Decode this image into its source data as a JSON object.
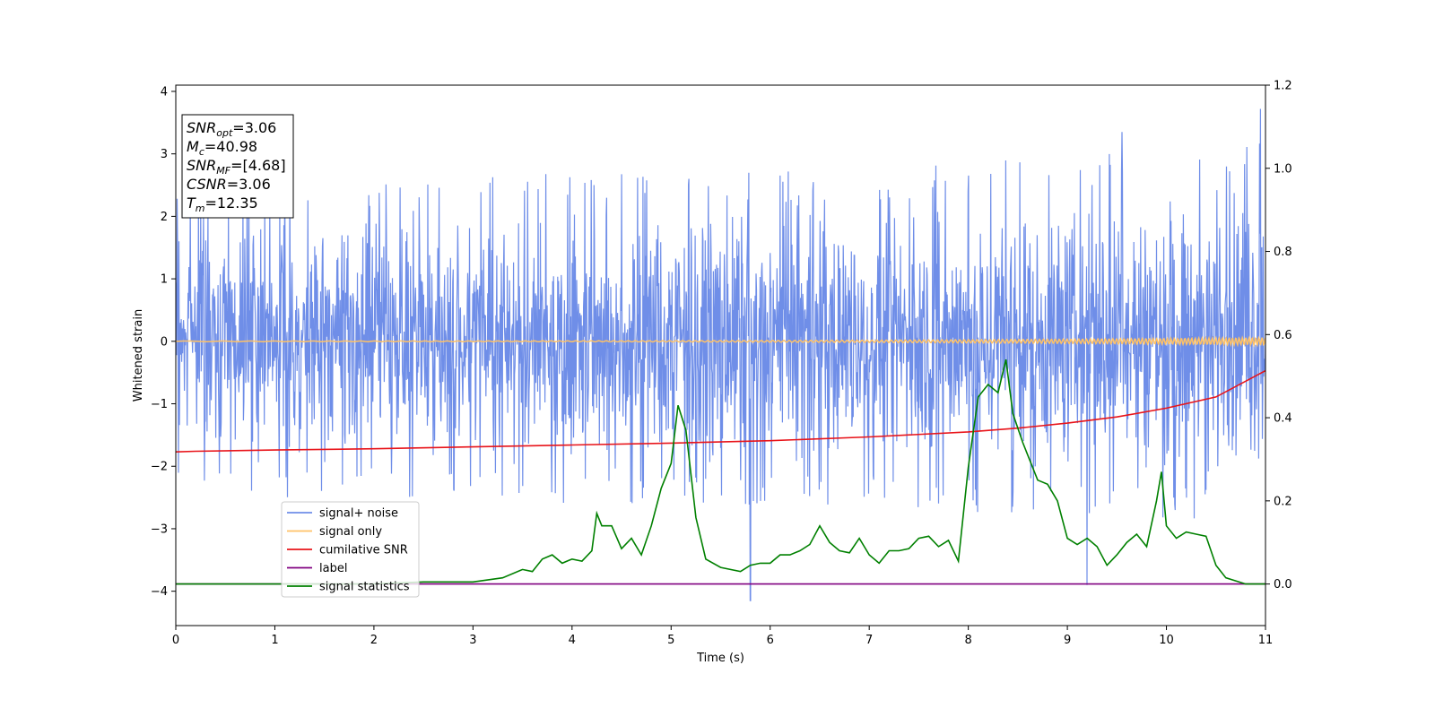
{
  "chart_data": {
    "type": "line",
    "xlabel": "Time (s)",
    "ylabel": "Whitened strain",
    "xlim": [
      0,
      11
    ],
    "ylim": [
      -4.55,
      4.1
    ],
    "y2lim": [
      -0.1,
      1.2
    ],
    "xticks": [
      "0",
      "1",
      "2",
      "3",
      "4",
      "5",
      "6",
      "7",
      "8",
      "9",
      "10",
      "11"
    ],
    "yticks": [
      "4",
      "3",
      "2",
      "1",
      "0",
      "−1",
      "−2",
      "−3",
      "−4"
    ],
    "y2ticks": [
      "1.2",
      "1.0",
      "0.8",
      "0.6",
      "0.4",
      "0.2",
      "0.0"
    ],
    "grid": false,
    "legend_position": "lower-left",
    "annotation": {
      "lines": [
        {
          "base": "SNR",
          "sub": "opt",
          "value": "=3.06"
        },
        {
          "base": "M",
          "sub": "c",
          "value": "=40.98"
        },
        {
          "base": "SNR",
          "sub": "MF",
          "value": "=[4.68]"
        },
        {
          "base": "CSNR",
          "sub": "",
          "value": "=3.06"
        },
        {
          "base": "T",
          "sub": "m",
          "value": "=12.35"
        }
      ]
    },
    "series": [
      {
        "name": "signal+ noise",
        "color": "#6f8ee8",
        "axis": "left",
        "kind": "noise_band",
        "envelope_upper": [
          [
            0,
            2.2
          ],
          [
            1,
            2.5
          ],
          [
            2,
            2.4
          ],
          [
            3,
            2.5
          ],
          [
            4,
            2.5
          ],
          [
            5,
            2.5
          ],
          [
            6,
            2.5
          ],
          [
            7,
            2.5
          ],
          [
            8,
            2.6
          ],
          [
            9,
            2.7
          ],
          [
            10,
            2.8
          ],
          [
            11,
            3.0
          ]
        ],
        "envelope_lower": [
          [
            0,
            -2.0
          ],
          [
            1,
            -2.3
          ],
          [
            2,
            -2.3
          ],
          [
            3,
            -2.3
          ],
          [
            4,
            -2.4
          ],
          [
            5,
            -2.4
          ],
          [
            6,
            -2.4
          ],
          [
            7,
            -2.4
          ],
          [
            8,
            -2.5
          ],
          [
            9,
            -2.6
          ],
          [
            10,
            -2.6
          ],
          [
            11,
            -2.6
          ]
        ],
        "notable_peaks": [
          [
            1.1,
            3.1
          ],
          [
            5.8,
            -4.15
          ],
          [
            9.2,
            -3.9
          ],
          [
            9.55,
            3.35
          ],
          [
            10.95,
            3.72
          ]
        ]
      },
      {
        "name": "signal only",
        "color": "#ffc266",
        "axis": "left",
        "kind": "chirp",
        "amplitude_start": 0.005,
        "amplitude_end": 0.06
      },
      {
        "name": "cumilative SNR",
        "color": "#e8141a",
        "axis": "left",
        "points": [
          [
            0,
            -1.77
          ],
          [
            0.2,
            -1.76
          ],
          [
            1,
            -1.74
          ],
          [
            2,
            -1.72
          ],
          [
            3,
            -1.69
          ],
          [
            4,
            -1.66
          ],
          [
            5,
            -1.63
          ],
          [
            6,
            -1.59
          ],
          [
            7,
            -1.53
          ],
          [
            8,
            -1.45
          ],
          [
            8.5,
            -1.39
          ],
          [
            9,
            -1.31
          ],
          [
            9.5,
            -1.21
          ],
          [
            10,
            -1.07
          ],
          [
            10.5,
            -0.89
          ],
          [
            11,
            -0.47
          ]
        ]
      },
      {
        "name": "label",
        "color": "#800080",
        "axis": "right",
        "points": [
          [
            0,
            0.0
          ],
          [
            11,
            0.0
          ]
        ]
      },
      {
        "name": "signal statistics",
        "color": "#008000",
        "axis": "right",
        "points": [
          [
            0,
            0.0
          ],
          [
            0.5,
            0.0
          ],
          [
            1.0,
            0.0
          ],
          [
            1.5,
            0.0
          ],
          [
            2.0,
            0.0
          ],
          [
            2.5,
            0.005
          ],
          [
            3.0,
            0.005
          ],
          [
            3.3,
            0.015
          ],
          [
            3.5,
            0.035
          ],
          [
            3.6,
            0.03
          ],
          [
            3.7,
            0.06
          ],
          [
            3.8,
            0.07
          ],
          [
            3.9,
            0.05
          ],
          [
            4.0,
            0.06
          ],
          [
            4.1,
            0.055
          ],
          [
            4.2,
            0.08
          ],
          [
            4.25,
            0.17
          ],
          [
            4.3,
            0.14
          ],
          [
            4.4,
            0.14
          ],
          [
            4.5,
            0.085
          ],
          [
            4.6,
            0.11
          ],
          [
            4.7,
            0.07
          ],
          [
            4.8,
            0.14
          ],
          [
            4.9,
            0.23
          ],
          [
            5.0,
            0.29
          ],
          [
            5.07,
            0.43
          ],
          [
            5.15,
            0.37
          ],
          [
            5.25,
            0.16
          ],
          [
            5.35,
            0.06
          ],
          [
            5.5,
            0.04
          ],
          [
            5.7,
            0.03
          ],
          [
            5.8,
            0.045
          ],
          [
            5.9,
            0.05
          ],
          [
            6.0,
            0.05
          ],
          [
            6.1,
            0.07
          ],
          [
            6.2,
            0.07
          ],
          [
            6.3,
            0.08
          ],
          [
            6.4,
            0.095
          ],
          [
            6.5,
            0.14
          ],
          [
            6.6,
            0.1
          ],
          [
            6.7,
            0.08
          ],
          [
            6.8,
            0.075
          ],
          [
            6.9,
            0.11
          ],
          [
            7.0,
            0.07
          ],
          [
            7.1,
            0.05
          ],
          [
            7.2,
            0.08
          ],
          [
            7.3,
            0.08
          ],
          [
            7.4,
            0.085
          ],
          [
            7.5,
            0.11
          ],
          [
            7.6,
            0.115
          ],
          [
            7.7,
            0.09
          ],
          [
            7.8,
            0.105
          ],
          [
            7.9,
            0.055
          ],
          [
            8.0,
            0.28
          ],
          [
            8.1,
            0.45
          ],
          [
            8.2,
            0.48
          ],
          [
            8.3,
            0.46
          ],
          [
            8.38,
            0.54
          ],
          [
            8.45,
            0.41
          ],
          [
            8.55,
            0.34
          ],
          [
            8.7,
            0.25
          ],
          [
            8.8,
            0.24
          ],
          [
            8.9,
            0.2
          ],
          [
            9.0,
            0.11
          ],
          [
            9.1,
            0.095
          ],
          [
            9.2,
            0.11
          ],
          [
            9.3,
            0.09
          ],
          [
            9.4,
            0.045
          ],
          [
            9.5,
            0.07
          ],
          [
            9.6,
            0.1
          ],
          [
            9.7,
            0.12
          ],
          [
            9.8,
            0.09
          ],
          [
            9.9,
            0.2
          ],
          [
            9.95,
            0.27
          ],
          [
            10.0,
            0.14
          ],
          [
            10.1,
            0.11
          ],
          [
            10.2,
            0.125
          ],
          [
            10.3,
            0.12
          ],
          [
            10.4,
            0.115
          ],
          [
            10.5,
            0.045
          ],
          [
            10.6,
            0.015
          ],
          [
            10.8,
            0.0
          ],
          [
            11.0,
            0.0
          ]
        ]
      }
    ]
  }
}
